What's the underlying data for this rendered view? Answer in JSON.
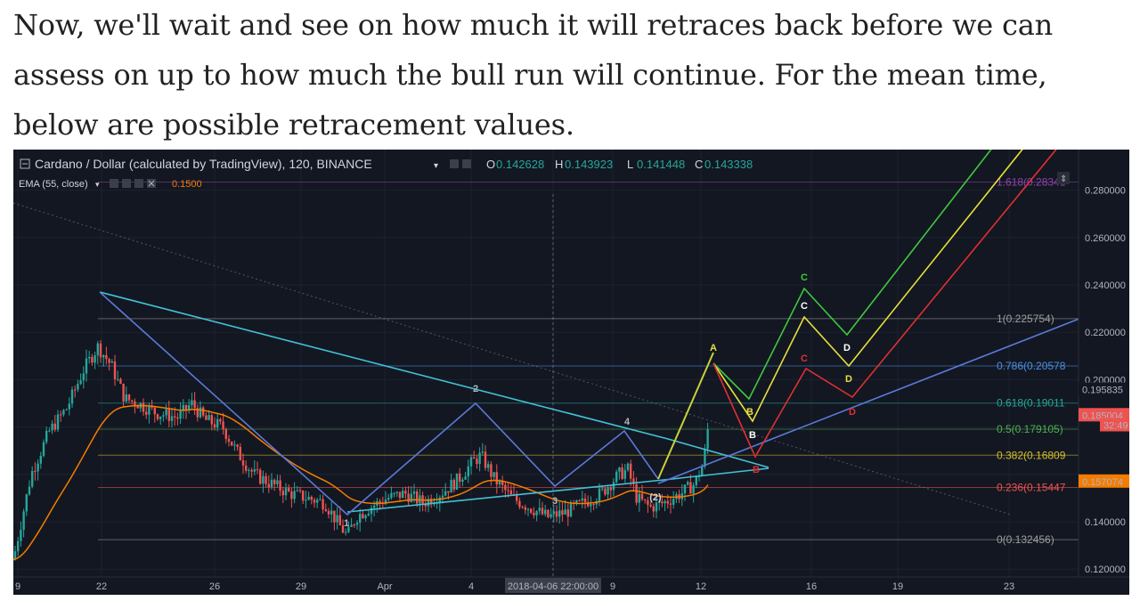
{
  "article": {
    "paragraph": "Now, we'll wait and see on how much it will retraces back before we can assess on up to how much the bull run will continue. For the mean time, below are possible retracement values."
  },
  "chart_header": {
    "symbol": "Cardano / Dollar (calculated by TradingView), 120, BINANCE",
    "ohlc": [
      {
        "key": "O",
        "value": "0.142628"
      },
      {
        "key": "H",
        "value": "0.143923"
      },
      {
        "key": "L",
        "value": "0.141448"
      },
      {
        "key": "C",
        "value": "0.143338"
      }
    ],
    "indicator": "EMA (55, close)",
    "indicator_value": "0.1500"
  },
  "chart_data": {
    "type": "line",
    "title": "",
    "x_axis_labels": [
      "9",
      "22",
      "26",
      "29",
      "Apr",
      "4",
      "2018-04-06 22:00:00",
      "9",
      "12",
      "16",
      "19",
      "23"
    ],
    "y_axis_labels": [
      "0.280000",
      "0.260000",
      "0.240000",
      "0.220000",
      "0.200000",
      "0.140000",
      "0.120000"
    ],
    "ylim": [
      0.11,
      0.285
    ],
    "price_tags": [
      {
        "label": "0.195835",
        "color": "#ffffff",
        "bg": "#131722"
      },
      {
        "label": "0.185004",
        "color": "#ffffff",
        "bg": "#ef5350"
      },
      {
        "label": "32:49",
        "color": "#ffffff",
        "bg": "#ef5350"
      },
      {
        "label": "0.157074",
        "color": "#ffffff",
        "bg": "#f57c00"
      }
    ],
    "fib_levels": [
      {
        "label": "1.618(0.28341",
        "value": 0.28341,
        "color": "#8e44ad"
      },
      {
        "label": "1(0.225754)",
        "value": 0.225754,
        "color": "#9e9e9e"
      },
      {
        "label": "0.786(0.20578",
        "value": 0.20578,
        "color": "#4a90e2"
      },
      {
        "label": "0.618(0.19011",
        "value": 0.19011,
        "color": "#26a69a"
      },
      {
        "label": "0.5(0.179105)",
        "value": 0.179105,
        "color": "#4caf50"
      },
      {
        "label": "0.382(0.16809",
        "value": 0.16809,
        "color": "#d4c02a"
      },
      {
        "label": "0.236(0.15447",
        "value": 0.15447,
        "color": "#ef5350"
      },
      {
        "label": "0(0.132456)",
        "value": 0.132456,
        "color": "#9e9e9e"
      }
    ],
    "wave_labels": [
      "1",
      "2",
      "3",
      "4",
      "(2)",
      "A",
      "B",
      "C",
      "D"
    ],
    "colors": {
      "background": "#131722",
      "up": "#26a69a",
      "down": "#ef5350",
      "ema": "#f57c00",
      "wave": "#5b7ad8",
      "triangle": "#42c2d6",
      "proj_green": "#3ec83e",
      "proj_yellow": "#e6e03a",
      "proj_red": "#e03030"
    }
  }
}
